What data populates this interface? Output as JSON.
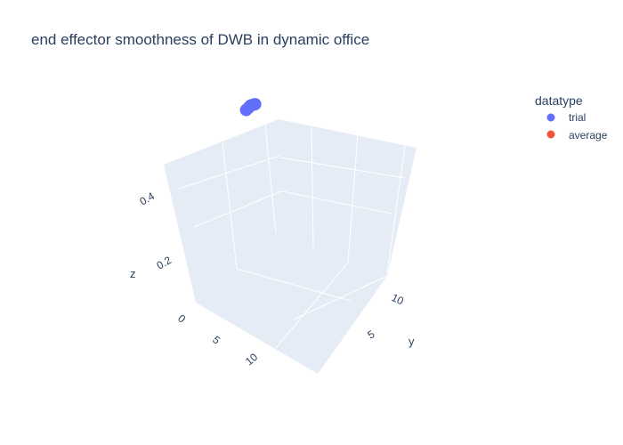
{
  "chart_data": {
    "type": "scatter3d",
    "title": "end effector smoothness of DWB in dynamic office",
    "axes": {
      "x": {
        "label": "",
        "ticks": [
          0,
          5,
          10
        ]
      },
      "y": {
        "label": "y",
        "ticks": [
          5,
          10
        ]
      },
      "z": {
        "label": "z",
        "ticks": [
          0.2,
          0.4
        ]
      }
    },
    "legend": {
      "title": "datatype",
      "entries": [
        {
          "name": "trial",
          "color": "#636efa"
        },
        {
          "name": "average",
          "color": "#ef553b"
        }
      ],
      "placement": "top-right"
    },
    "series": [
      {
        "name": "trial",
        "color": "#636efa",
        "points": [
          {
            "x": 0.2,
            "y": 11.6,
            "z": 0.54
          },
          {
            "x": 0.4,
            "y": 11.8,
            "z": 0.55
          },
          {
            "x": 0.6,
            "y": 11.9,
            "z": 0.56
          },
          {
            "x": 0.8,
            "y": 12.0,
            "z": 0.565
          },
          {
            "x": 1.0,
            "y": 12.1,
            "z": 0.57
          }
        ]
      },
      {
        "name": "average",
        "color": "#ef553b",
        "points": []
      }
    ],
    "background": "#e5ecf6",
    "grid": true
  }
}
